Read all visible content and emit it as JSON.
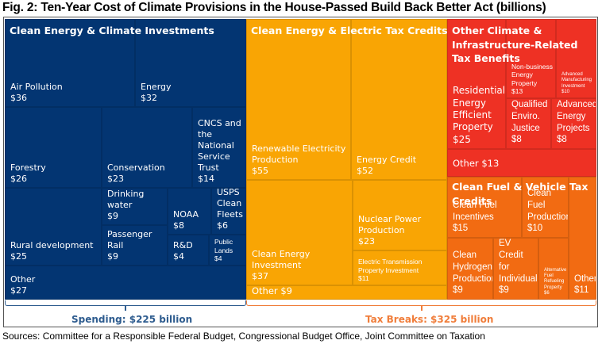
{
  "title": "Fig. 2: Ten-Year Cost of Climate Provisions in the House-Passed Build Back Better Act (billions)",
  "sources": "Sources: Committee for a Responsible Federal Budget, Congressional Budget Office, Joint Committee on Taxation",
  "colors": {
    "spending": "#033572",
    "clean_energy_tax": "#F9A504",
    "other_climate_tax": "#EE3124",
    "clean_fuel_tax": "#F26B12",
    "spending_label": "#2E5C8F",
    "tax_label": "#F07D3A"
  },
  "summary": {
    "spending_label": "Spending: $225 billion",
    "tax_label": "Tax Breaks: $325 billion"
  },
  "chart_data": {
    "type": "treemap",
    "title": "Fig. 2: Ten-Year Cost of Climate Provisions in the House-Passed Build Back Better Act (billions)",
    "units": "billions of dollars",
    "totals": {
      "Spending": 225,
      "Tax Breaks": 325
    },
    "groups": [
      {
        "id": "spending",
        "name": "Clean Energy & Climate Investments",
        "category": "Spending",
        "items": [
          {
            "name": "Air Pollution",
            "value": 36,
            "label": "$36"
          },
          {
            "name": "Energy",
            "value": 32,
            "label": "$32"
          },
          {
            "name": "Forestry",
            "value": 26,
            "label": "$26"
          },
          {
            "name": "Conservation",
            "value": 23,
            "label": "$23"
          },
          {
            "name": "CNCS and the National Service Trust",
            "value": 14,
            "label": "$14"
          },
          {
            "name": "Rural development",
            "value": 25,
            "label": "$25"
          },
          {
            "name": "Drinking water",
            "value": 9,
            "label": "$9"
          },
          {
            "name": "Passenger Rail",
            "value": 9,
            "label": "$9"
          },
          {
            "name": "NOAA",
            "value": 8,
            "label": "$8"
          },
          {
            "name": "USPS Clean Fleets",
            "value": 6,
            "label": "$6"
          },
          {
            "name": "R&D",
            "value": 4,
            "label": "$4"
          },
          {
            "name": "Public Lands",
            "value": 4,
            "label": "$4"
          },
          {
            "name": "Other",
            "value": 27,
            "label": "$27"
          }
        ]
      },
      {
        "id": "clean_energy_tax",
        "name": "Clean Energy & Electric Tax Credits",
        "category": "Tax Breaks",
        "items": [
          {
            "name": "Renewable Electricity Production",
            "value": 55,
            "label": "$55"
          },
          {
            "name": "Energy Credit",
            "value": 52,
            "label": "$52"
          },
          {
            "name": "Clean Energy Investment",
            "value": 37,
            "label": "$37"
          },
          {
            "name": "Nuclear Power Production",
            "value": 23,
            "label": "$23"
          },
          {
            "name": "Electric Transmission Property Investment",
            "value": 11,
            "label": "$11"
          },
          {
            "name": "Other",
            "value": 9,
            "label": "$9"
          }
        ]
      },
      {
        "id": "other_climate_tax",
        "name": "Other Climate & Infrastructure-Related Tax Benefits",
        "category": "Tax Breaks",
        "items": [
          {
            "name": "Residential Energy Efficient Property",
            "value": 25,
            "label": "$25"
          },
          {
            "name": "Non-business Energy Property",
            "value": 13,
            "label": "$13"
          },
          {
            "name": "Advanced Manufacturing Investment",
            "value": 10,
            "label": "$10"
          },
          {
            "name": "Qualified Enviro. Justice",
            "value": 8,
            "label": "$8"
          },
          {
            "name": "Advanced Energy Projects",
            "value": 8,
            "label": "$8"
          },
          {
            "name": "Other",
            "value": 13,
            "label": "$13"
          }
        ]
      },
      {
        "id": "clean_fuel_tax",
        "name": "Clean Fuel & Vehicle Tax Credits",
        "category": "Tax Breaks",
        "items": [
          {
            "name": "Clean Fuel Incentives",
            "value": 15,
            "label": "$15"
          },
          {
            "name": "Clean Fuel Production",
            "value": 10,
            "label": "$10"
          },
          {
            "name": "Clean Hydrogen Production",
            "value": 9,
            "label": "$9"
          },
          {
            "name": "New Plug-In EV Credit for Individuals",
            "value": 9,
            "label": "$9"
          },
          {
            "name": "Alternative Fuel Refueling Property",
            "value": 6,
            "label": "$6"
          },
          {
            "name": "Other",
            "value": 11,
            "label": "$11"
          }
        ]
      }
    ]
  }
}
